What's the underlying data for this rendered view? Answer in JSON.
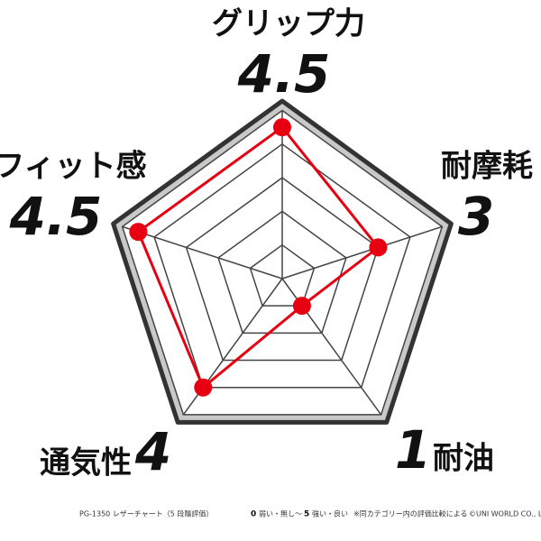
{
  "chart_data": {
    "type": "radar",
    "categories": [
      "グリップ力",
      "耐摩耗",
      "耐油",
      "通気性",
      "フィット感"
    ],
    "values": [
      4.5,
      3,
      1,
      4,
      4.5
    ],
    "color": "#e60012",
    "rlim": [
      0,
      5
    ],
    "rticks": [
      1,
      2,
      3,
      4,
      5
    ],
    "grid": true,
    "footnote": [
      "PG-1350 レザーチャート（5 段階評価）",
      "弱い・無し〜",
      "強い・良い",
      "※同カテゴリー内の評価比較による",
      "©UNI WORLD CO., Ltd."
    ]
  }
}
